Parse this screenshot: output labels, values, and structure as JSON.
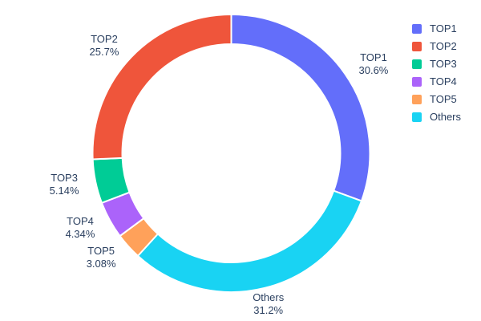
{
  "chart_data": {
    "type": "pie",
    "subtype": "donut",
    "title": "",
    "background": "#ffffff",
    "text_color": "#2a3f5f",
    "hole": 0.786,
    "categories": [
      "TOP1",
      "TOP2",
      "TOP3",
      "TOP4",
      "TOP5",
      "Others"
    ],
    "values": [
      30.6,
      25.7,
      5.14,
      4.34,
      3.08,
      31.2
    ],
    "value_labels": [
      "30.6%",
      "25.7%",
      "5.14%",
      "4.34%",
      "3.08%",
      "31.2%"
    ],
    "colors": [
      "#636EFA",
      "#EF553B",
      "#00CC96",
      "#AB63FA",
      "#FFA15A",
      "#19D3F3"
    ],
    "slices_clockwise_from_top": [
      {
        "label": "TOP1",
        "value": 30.6,
        "pct": "30.6%",
        "color": "#636EFA"
      },
      {
        "label": "Others",
        "value": 31.2,
        "pct": "31.2%",
        "color": "#19D3F3"
      },
      {
        "label": "TOP5",
        "value": 3.08,
        "pct": "3.08%",
        "color": "#FFA15A"
      },
      {
        "label": "TOP4",
        "value": 4.34,
        "pct": "4.34%",
        "color": "#AB63FA"
      },
      {
        "label": "TOP3",
        "value": 5.14,
        "pct": "5.14%",
        "color": "#00CC96"
      },
      {
        "label": "TOP2",
        "value": 25.7,
        "pct": "25.7%",
        "color": "#EF553B"
      }
    ],
    "legend": {
      "position": "right",
      "entries": [
        "TOP1",
        "TOP2",
        "TOP3",
        "TOP4",
        "TOP5",
        "Others"
      ]
    }
  }
}
